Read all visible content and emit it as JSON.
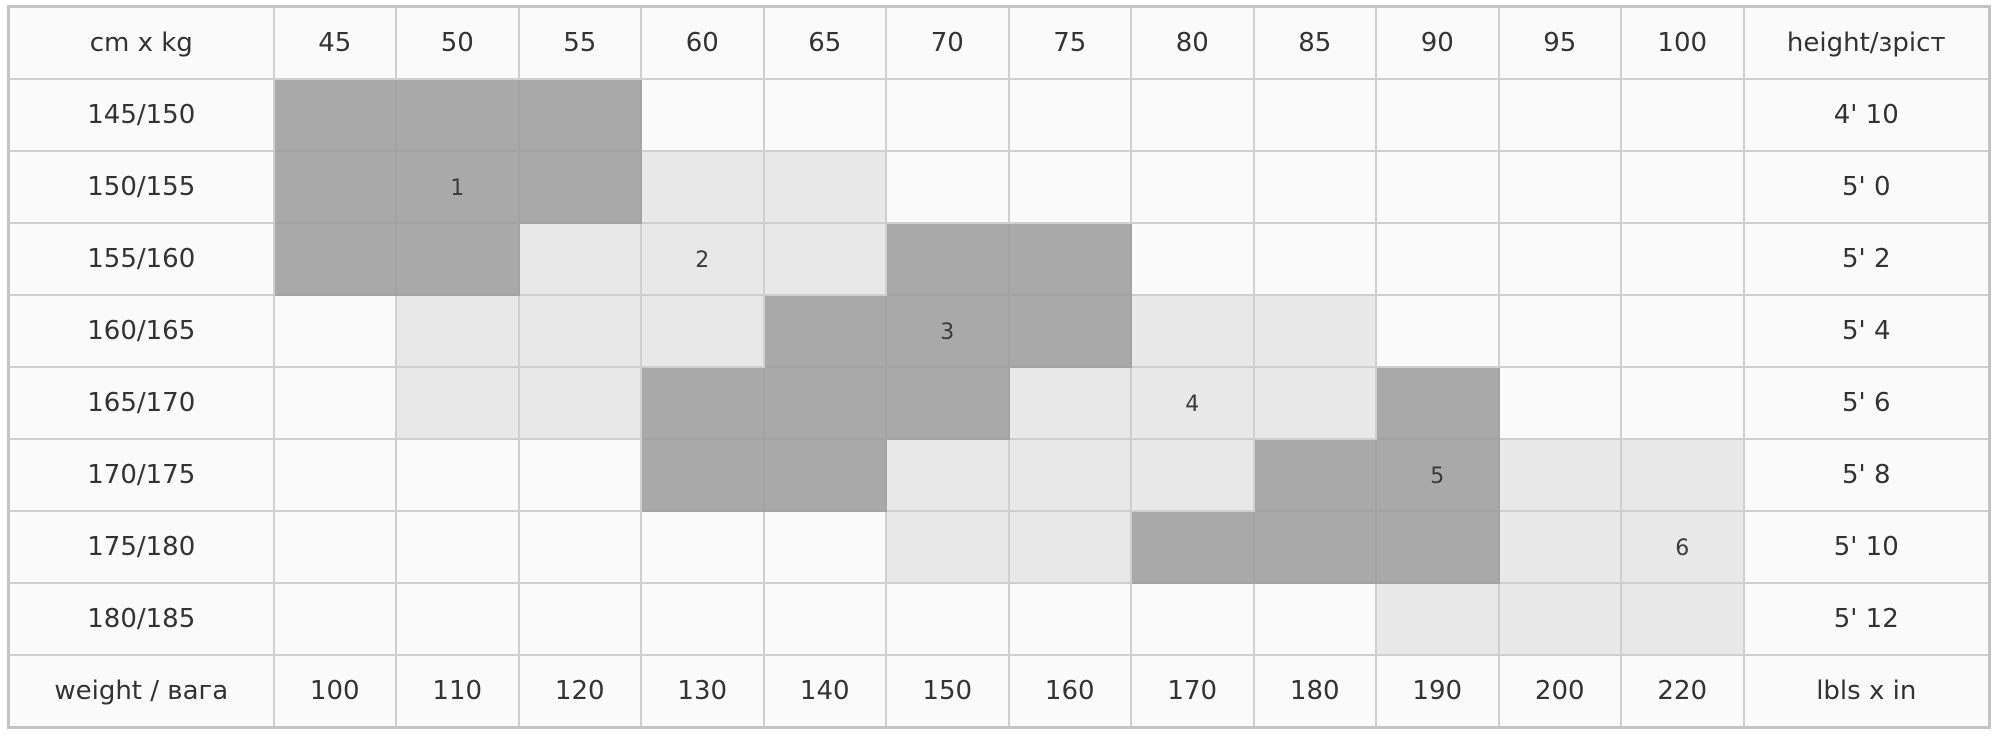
{
  "header": {
    "corner": "cm x kg",
    "kg": [
      "45",
      "50",
      "55",
      "60",
      "65",
      "70",
      "75",
      "80",
      "85",
      "90",
      "95",
      "100"
    ],
    "last": "height/зріст"
  },
  "footer": {
    "corner": "weight / вага",
    "lbs": [
      "100",
      "110",
      "120",
      "130",
      "140",
      "150",
      "160",
      "170",
      "180",
      "190",
      "200",
      "220"
    ],
    "last": "lbls x in"
  },
  "colors": {
    "dark": "#a9a9a9",
    "light": "#e8e8e8",
    "empty": "#fafafa"
  },
  "rows": [
    {
      "cm": "145/150",
      "in": "4' 10",
      "cells": [
        "D",
        "D",
        "D",
        "W",
        "W",
        "W",
        "W",
        "W",
        "W",
        "W",
        "W",
        "W"
      ],
      "mark": null
    },
    {
      "cm": "150/155",
      "in": "5' 0",
      "cells": [
        "D",
        "D",
        "D",
        "L",
        "L",
        "W",
        "W",
        "W",
        "W",
        "W",
        "W",
        "W"
      ],
      "mark": {
        "col": 1,
        "text": "1"
      }
    },
    {
      "cm": "155/160",
      "in": "5' 2",
      "cells": [
        "D",
        "D",
        "L",
        "L",
        "L",
        "D",
        "D",
        "W",
        "W",
        "W",
        "W",
        "W"
      ],
      "mark": {
        "col": 3,
        "text": "2"
      }
    },
    {
      "cm": "160/165",
      "in": "5' 4",
      "cells": [
        "W",
        "L",
        "L",
        "L",
        "D",
        "D",
        "D",
        "L",
        "L",
        "W",
        "W",
        "W"
      ],
      "mark": {
        "col": 5,
        "text": "3"
      }
    },
    {
      "cm": "165/170",
      "in": "5' 6",
      "cells": [
        "W",
        "L",
        "L",
        "D",
        "D",
        "D",
        "L",
        "L",
        "L",
        "D",
        "W",
        "W"
      ],
      "mark": {
        "col": 7,
        "text": "4"
      }
    },
    {
      "cm": "170/175",
      "in": "5' 8",
      "cells": [
        "W",
        "W",
        "W",
        "D",
        "D",
        "L",
        "L",
        "L",
        "D",
        "D",
        "L",
        "L"
      ],
      "mark": {
        "col": 9,
        "text": "5"
      }
    },
    {
      "cm": "175/180",
      "in": "5' 10",
      "cells": [
        "W",
        "W",
        "W",
        "W",
        "W",
        "L",
        "L",
        "D",
        "D",
        "D",
        "L",
        "L"
      ],
      "mark": {
        "col": 11,
        "text": "6"
      }
    },
    {
      "cm": "180/185",
      "in": "5' 12",
      "cells": [
        "W",
        "W",
        "W",
        "W",
        "W",
        "W",
        "W",
        "W",
        "W",
        "L",
        "L",
        "L"
      ],
      "mark": null
    }
  ]
}
